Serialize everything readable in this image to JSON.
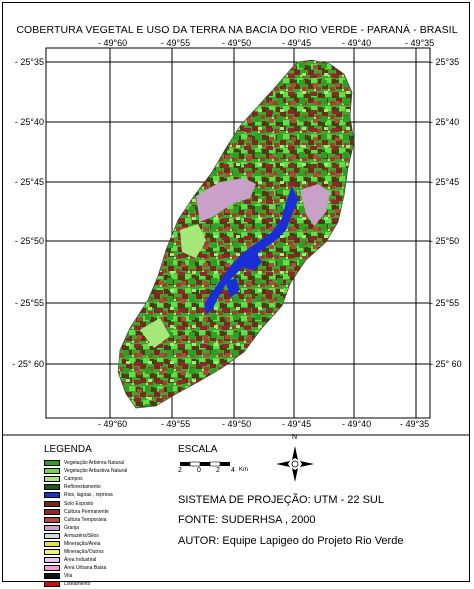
{
  "title": "COBERTURA VEGETAL E USO DA TERRA NA BACIA DO RIO VERDE - PARANÁ - BRASIL",
  "top_lon_labels": [
    "- 49°60",
    "- 49°55",
    "- 49°50",
    "- 49°45",
    "- 49°40",
    "- 49°35"
  ],
  "bottom_lon_labels": [
    "- 49°60",
    "- 49°55",
    "- 49°50",
    "- 49°45",
    "- 49°40",
    "- 49°35"
  ],
  "left_lat_labels": [
    "- 25°35",
    "- 25°40",
    "- 25°45",
    "- 25°50",
    "- 25°55",
    "- 25° 60"
  ],
  "right_lat_labels": [
    "- 25°35",
    "- 25°40",
    "- 25°45",
    "- 25°50",
    "- 25°55",
    "- 25° 60"
  ],
  "legend": {
    "title": "LEGENDA",
    "items": [
      {
        "label": "Vegetação Arbórea Natural",
        "color": "#2e9e24"
      },
      {
        "label": "Vegetação Arbustiva Natural",
        "color": "#66dd44"
      },
      {
        "label": "Campos",
        "color": "#a6e87a"
      },
      {
        "label": "Reflorestamento",
        "color": "#1a5a14"
      },
      {
        "label": "Rios, lagoas , represa",
        "color": "#1a2ed8"
      },
      {
        "label": "Solo Exposto",
        "color": "#6b2a12"
      },
      {
        "label": "Cultura Permanente",
        "color": "#8a2a2a"
      },
      {
        "label": "Cultura Temporária",
        "color": "#b04a3a"
      },
      {
        "label": "Granja",
        "color": "#c8a0c8"
      },
      {
        "label": "Armazéns/Silos",
        "color": "#d8d8d8"
      },
      {
        "label": "Mineração/Areia",
        "color": "#e8e040"
      },
      {
        "label": "Mineração/Outros",
        "color": "#f0f070"
      },
      {
        "label": "Área Industrial",
        "color": "#e8c8f0"
      },
      {
        "label": "Área Urbana Baixa",
        "color": "#f0a0d8"
      },
      {
        "label": "Vila",
        "color": "#111111"
      },
      {
        "label": "Loteamento",
        "color": "#cc1010"
      }
    ]
  },
  "scale": {
    "title": "ESCALA",
    "ticks": [
      "2",
      "0",
      "2",
      "4"
    ],
    "unit": "Km"
  },
  "north_arrow_label": "N",
  "info": {
    "projection": "SISTEMA DE PROJEÇÃO: UTM - 22 SUL",
    "source": "FONTE: SUDERHSA , 2000",
    "author": "AUTOR: Equipe Lapigeo do Projeto Rio Verde"
  }
}
